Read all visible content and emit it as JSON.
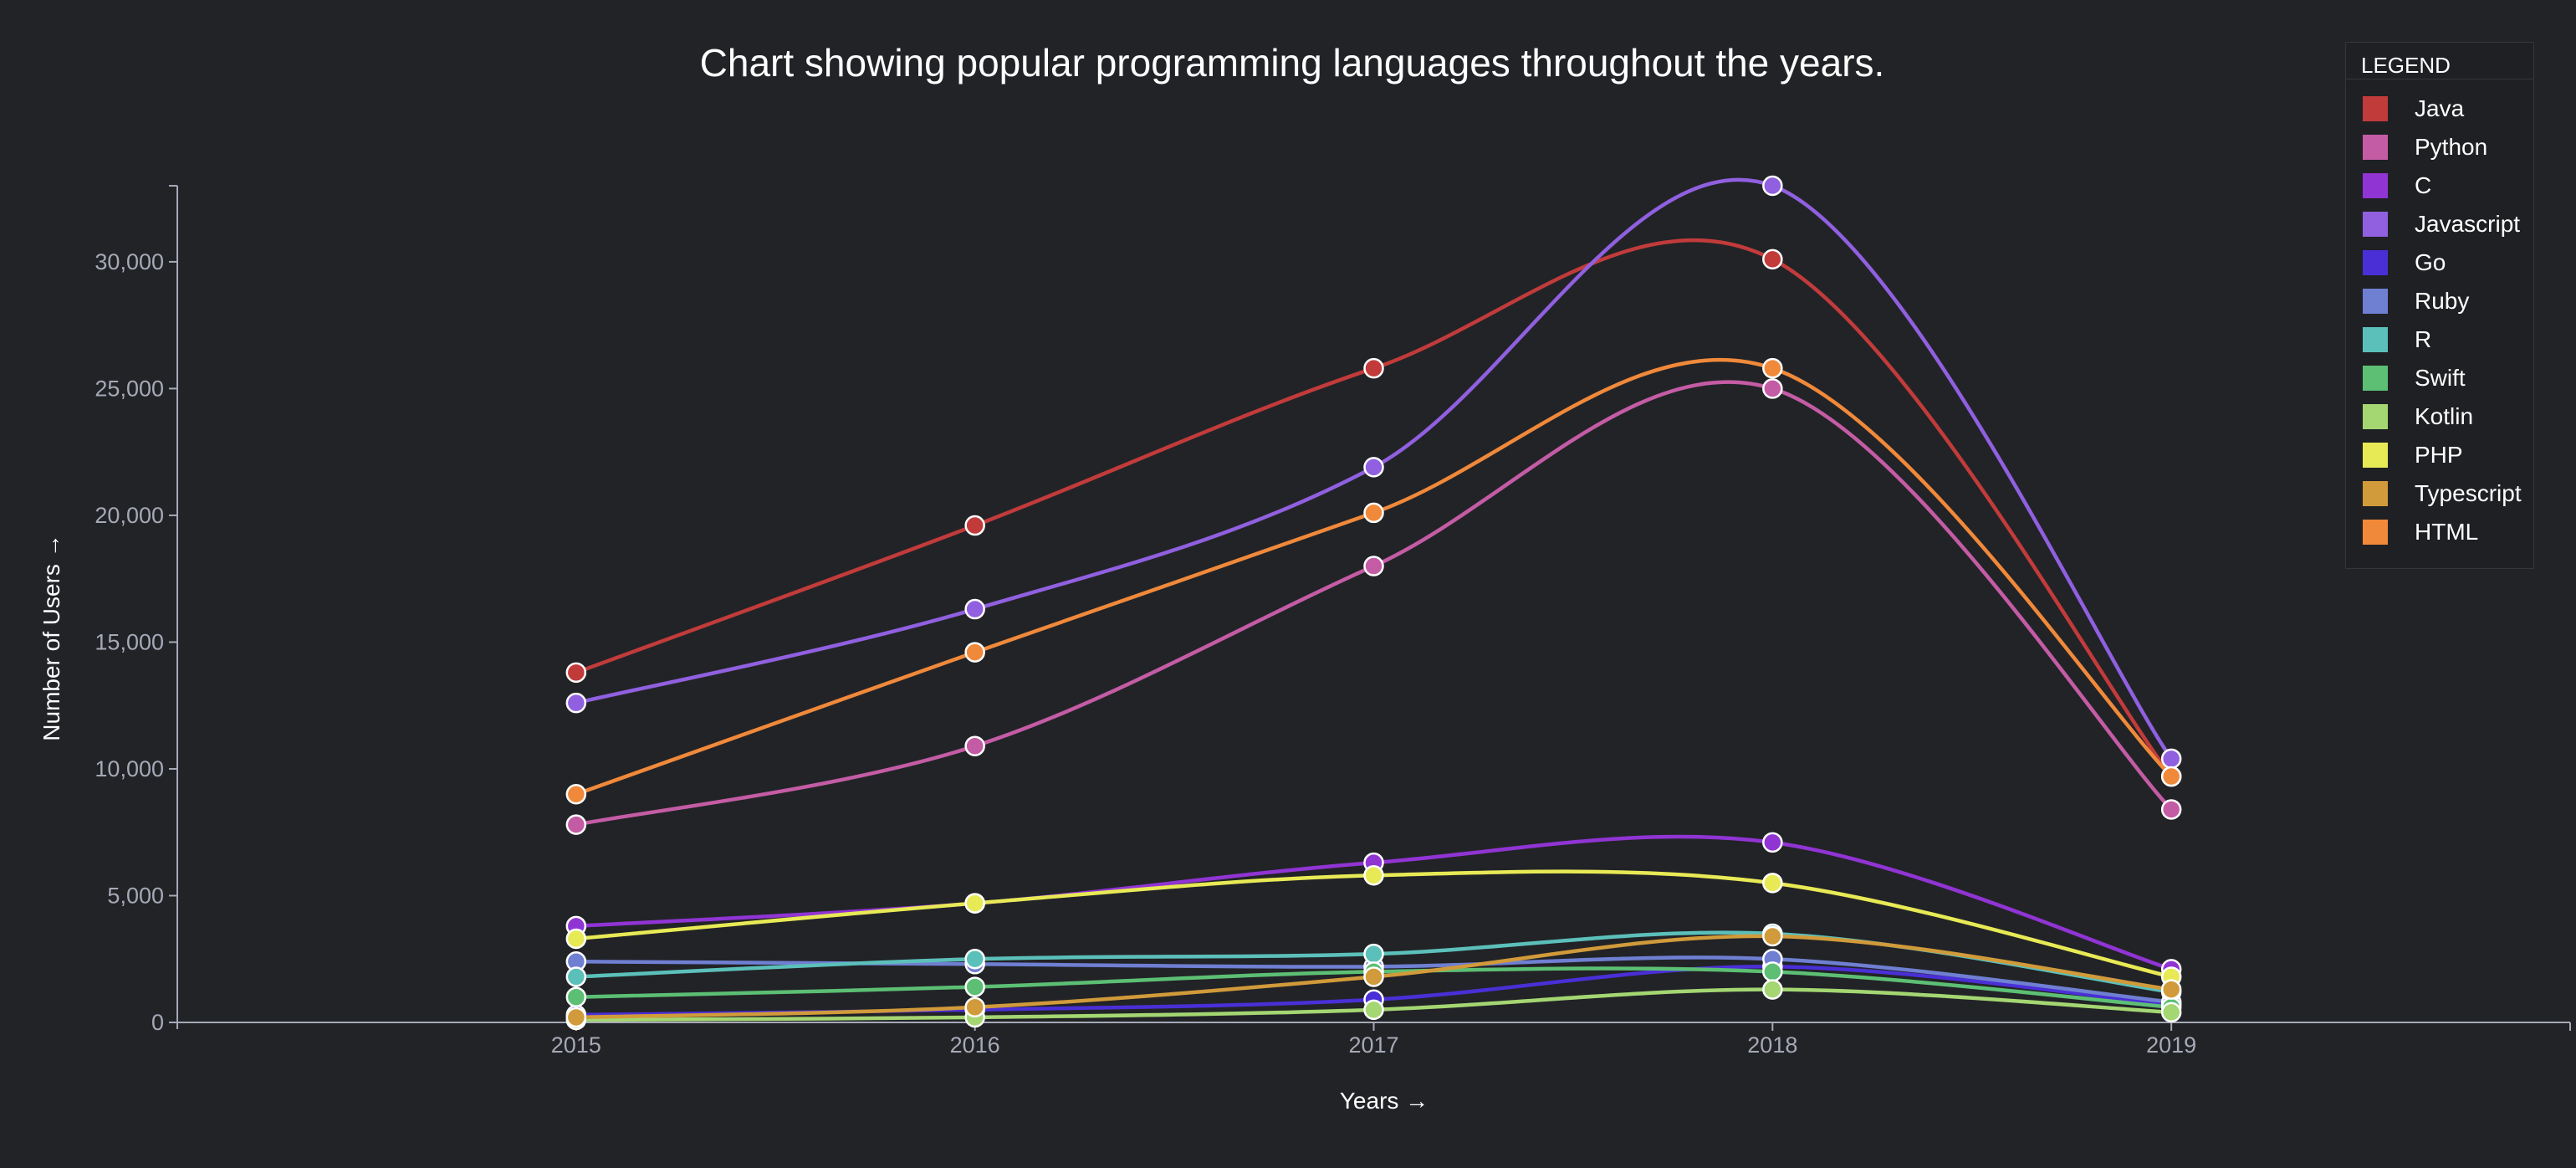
{
  "chart_data": {
    "type": "line",
    "title": "Chart showing popular programming languages throughout the years.",
    "xlabel": "Years →",
    "ylabel": "Number of Users →",
    "legend_title": "LEGEND",
    "legend_position": "top-right",
    "categories": [
      "2015",
      "2016",
      "2017",
      "2018",
      "2019"
    ],
    "ylim": [
      0,
      33000
    ],
    "yticks": [
      0,
      5000,
      10000,
      15000,
      20000,
      25000,
      30000
    ],
    "ytick_labels": [
      "0",
      "5,000",
      "10,000",
      "15,000",
      "20,000",
      "25,000",
      "30,000"
    ],
    "x_range": [
      2014,
      2020
    ],
    "grid": false,
    "background": "#222327",
    "axis_color": "#a6a9b6",
    "series": [
      {
        "name": "Java",
        "color": "#c23b3b",
        "values": [
          13800,
          19600,
          25800,
          30100,
          9700
        ]
      },
      {
        "name": "Python",
        "color": "#c45ca5",
        "values": [
          7800,
          10900,
          18000,
          25000,
          8400
        ]
      },
      {
        "name": "C",
        "color": "#9134d4",
        "values": [
          3800,
          4700,
          6300,
          7100,
          2100
        ]
      },
      {
        "name": "Javascript",
        "color": "#9060e0",
        "values": [
          12600,
          16300,
          21900,
          33000,
          10400
        ]
      },
      {
        "name": "Go",
        "color": "#4a2fd6",
        "values": [
          300,
          500,
          900,
          2200,
          700
        ]
      },
      {
        "name": "Ruby",
        "color": "#6f7fd2",
        "values": [
          2400,
          2300,
          2200,
          2500,
          800
        ]
      },
      {
        "name": "R",
        "color": "#5cc0ba",
        "values": [
          1800,
          2500,
          2700,
          3500,
          1200
        ]
      },
      {
        "name": "Swift",
        "color": "#5cbf74",
        "values": [
          1000,
          1400,
          2000,
          2000,
          600
        ]
      },
      {
        "name": "Kotlin",
        "color": "#a4d672",
        "values": [
          100,
          200,
          500,
          1300,
          400
        ]
      },
      {
        "name": "PHP",
        "color": "#e8ea55",
        "values": [
          3300,
          4700,
          5800,
          5500,
          1800
        ]
      },
      {
        "name": "Typescript",
        "color": "#d19a3a",
        "values": [
          200,
          600,
          1800,
          3400,
          1300
        ]
      },
      {
        "name": "HTML",
        "color": "#f0893a",
        "values": [
          9000,
          14600,
          20100,
          25800,
          9700
        ]
      }
    ]
  }
}
